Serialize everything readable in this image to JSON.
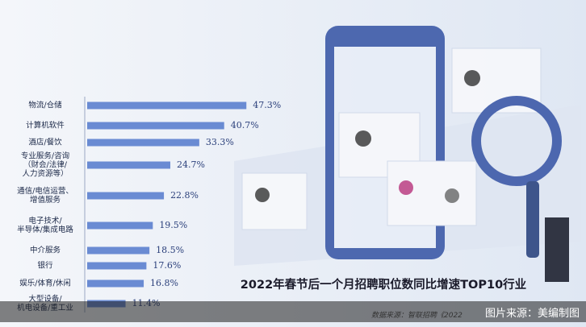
{
  "chart_data": {
    "type": "bar",
    "orientation": "horizontal",
    "title": "2022年春节后一个月招聘职位数同比增速TOP10行业",
    "categories": [
      "物流/仓储",
      "计算机软件",
      "酒店/餐饮",
      "专业服务/咨询\n（财会/法律/\n人力资源等）",
      "通信/电信运营、\n增值服务",
      "电子技术/\n半导体/集成电路",
      "中介服务",
      "银行",
      "娱乐/体育/休闲",
      "大型设备/\n机电设备/重工业"
    ],
    "values": [
      47.3,
      40.7,
      33.3,
      24.7,
      22.8,
      19.5,
      18.5,
      17.6,
      16.8,
      11.4
    ],
    "value_labels": [
      "47.3%",
      "40.7%",
      "33.3%",
      "24.7%",
      "22.8%",
      "19.5%",
      "18.5%",
      "17.6%",
      "16.8%",
      "11.4%"
    ],
    "color": "#5b7fce"
  },
  "source": "数据来源：智联招聘《2022",
  "watermark": "图片来源：美编制图"
}
